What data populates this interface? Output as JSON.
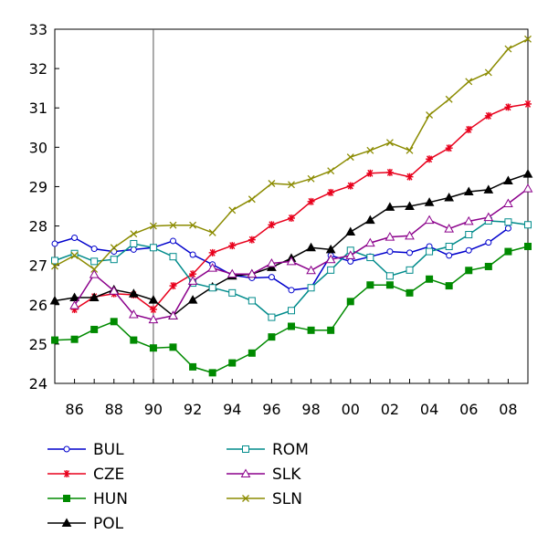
{
  "chart_data": {
    "type": "line",
    "title": "",
    "xlabel": "",
    "ylabel": "",
    "xlim": [
      1985,
      2009
    ],
    "ylim": [
      24,
      33
    ],
    "y_ticks": [
      24,
      25,
      26,
      27,
      28,
      29,
      30,
      31,
      32,
      33
    ],
    "x_ticks": [
      1986,
      1988,
      1990,
      1992,
      1994,
      1996,
      1998,
      2000,
      2002,
      2004,
      2006,
      2008
    ],
    "x_tick_labels": [
      "86",
      "88",
      "90",
      "92",
      "94",
      "96",
      "98",
      "00",
      "02",
      "04",
      "06",
      "08"
    ],
    "reference_line_x": 1990,
    "grid": false,
    "legend_position": "bottom",
    "series": [
      {
        "name": "BUL",
        "color": "#0000cc",
        "marker": "circle",
        "points": [
          [
            1985,
            27.55
          ],
          [
            1986,
            27.7
          ],
          [
            1987,
            27.42
          ],
          [
            1988,
            27.35
          ],
          [
            1989,
            27.4
          ],
          [
            1990,
            27.45
          ],
          [
            1991,
            27.62
          ],
          [
            1992,
            27.27
          ],
          [
            1993,
            27.02
          ],
          [
            1994,
            26.75
          ],
          [
            1995,
            26.68
          ],
          [
            1996,
            26.7
          ],
          [
            1997,
            26.37
          ],
          [
            1998,
            26.43
          ],
          [
            1999,
            27.25
          ],
          [
            2000,
            27.1
          ],
          [
            2001,
            27.22
          ],
          [
            2002,
            27.35
          ],
          [
            2003,
            27.32
          ],
          [
            2004,
            27.48
          ],
          [
            2005,
            27.25
          ],
          [
            2006,
            27.38
          ],
          [
            2007,
            27.58
          ],
          [
            2008,
            27.94
          ]
        ]
      },
      {
        "name": "CZE",
        "color": "#e8001c",
        "marker": "asterisk",
        "points": [
          [
            1986,
            25.88
          ],
          [
            1987,
            26.2
          ],
          [
            1988,
            26.28
          ],
          [
            1989,
            26.25
          ],
          [
            1990,
            25.88
          ],
          [
            1991,
            26.48
          ],
          [
            1992,
            26.78
          ],
          [
            1993,
            27.32
          ],
          [
            1994,
            27.5
          ],
          [
            1995,
            27.65
          ],
          [
            1996,
            28.03
          ],
          [
            1997,
            28.2
          ],
          [
            1998,
            28.62
          ],
          [
            1999,
            28.85
          ],
          [
            2000,
            29.02
          ],
          [
            2001,
            29.34
          ],
          [
            2002,
            29.36
          ],
          [
            2003,
            29.25
          ],
          [
            2004,
            29.7
          ],
          [
            2005,
            29.98
          ],
          [
            2006,
            30.45
          ],
          [
            2007,
            30.8
          ],
          [
            2008,
            31.02
          ],
          [
            2009,
            31.1
          ]
        ]
      },
      {
        "name": "HUN",
        "color": "#008a00",
        "marker": "filled-square",
        "points": [
          [
            1985,
            25.1
          ],
          [
            1986,
            25.12
          ],
          [
            1987,
            25.37
          ],
          [
            1988,
            25.57
          ],
          [
            1989,
            25.1
          ],
          [
            1990,
            24.9
          ],
          [
            1991,
            24.92
          ],
          [
            1992,
            24.42
          ],
          [
            1993,
            24.27
          ],
          [
            1994,
            24.52
          ],
          [
            1995,
            24.77
          ],
          [
            1996,
            25.18
          ],
          [
            1997,
            25.45
          ],
          [
            1998,
            25.35
          ],
          [
            1999,
            25.35
          ],
          [
            2000,
            26.08
          ],
          [
            2001,
            26.5
          ],
          [
            2002,
            26.5
          ],
          [
            2003,
            26.3
          ],
          [
            2004,
            26.65
          ],
          [
            2005,
            26.48
          ],
          [
            2006,
            26.87
          ],
          [
            2007,
            26.97
          ],
          [
            2008,
            27.35
          ],
          [
            2009,
            27.48
          ]
        ]
      },
      {
        "name": "POL",
        "color": "#000000",
        "marker": "filled-triangle",
        "points": [
          [
            1985,
            26.1
          ],
          [
            1986,
            26.18
          ],
          [
            1987,
            26.18
          ],
          [
            1988,
            26.38
          ],
          [
            1989,
            26.28
          ],
          [
            1990,
            26.12
          ],
          [
            1991,
            25.72
          ],
          [
            1992,
            26.12
          ],
          [
            1993,
            26.45
          ],
          [
            1994,
            26.73
          ],
          [
            1995,
            26.78
          ],
          [
            1996,
            26.95
          ],
          [
            1997,
            27.18
          ],
          [
            1998,
            27.45
          ],
          [
            1999,
            27.4
          ],
          [
            2000,
            27.85
          ],
          [
            2001,
            28.15
          ],
          [
            2002,
            28.48
          ],
          [
            2003,
            28.5
          ],
          [
            2004,
            28.6
          ],
          [
            2005,
            28.72
          ],
          [
            2006,
            28.87
          ],
          [
            2007,
            28.92
          ],
          [
            2008,
            29.15
          ],
          [
            2009,
            29.32
          ]
        ]
      },
      {
        "name": "ROM",
        "color": "#008b8b",
        "marker": "open-square",
        "points": [
          [
            1985,
            27.12
          ],
          [
            1986,
            27.3
          ],
          [
            1987,
            27.1
          ],
          [
            1988,
            27.15
          ],
          [
            1989,
            27.55
          ],
          [
            1990,
            27.45
          ],
          [
            1991,
            27.22
          ],
          [
            1992,
            26.55
          ],
          [
            1993,
            26.43
          ],
          [
            1994,
            26.3
          ],
          [
            1995,
            26.1
          ],
          [
            1996,
            25.68
          ],
          [
            1997,
            25.85
          ],
          [
            1998,
            26.43
          ],
          [
            1999,
            26.88
          ],
          [
            2000,
            27.38
          ],
          [
            2001,
            27.2
          ],
          [
            2002,
            26.73
          ],
          [
            2003,
            26.88
          ],
          [
            2004,
            27.35
          ],
          [
            2005,
            27.48
          ],
          [
            2006,
            27.78
          ],
          [
            2007,
            28.13
          ],
          [
            2008,
            28.1
          ],
          [
            2009,
            28.03
          ]
        ]
      },
      {
        "name": "SLK",
        "color": "#8b008b",
        "marker": "open-triangle",
        "points": [
          [
            1986,
            25.98
          ],
          [
            1987,
            26.77
          ],
          [
            1988,
            26.35
          ],
          [
            1989,
            25.75
          ],
          [
            1990,
            25.62
          ],
          [
            1991,
            25.72
          ],
          [
            1992,
            26.6
          ],
          [
            1993,
            26.93
          ],
          [
            1994,
            26.78
          ],
          [
            1995,
            26.78
          ],
          [
            1996,
            27.05
          ],
          [
            1997,
            27.1
          ],
          [
            1998,
            26.87
          ],
          [
            1999,
            27.15
          ],
          [
            2000,
            27.25
          ],
          [
            2001,
            27.57
          ],
          [
            2002,
            27.72
          ],
          [
            2003,
            27.75
          ],
          [
            2004,
            28.15
          ],
          [
            2005,
            27.93
          ],
          [
            2006,
            28.12
          ],
          [
            2007,
            28.22
          ],
          [
            2008,
            28.57
          ],
          [
            2009,
            28.95
          ]
        ]
      },
      {
        "name": "SLN",
        "color": "#8b8b00",
        "marker": "cross",
        "points": [
          [
            1985,
            26.98
          ],
          [
            1986,
            27.25
          ],
          [
            1987,
            26.9
          ],
          [
            1988,
            27.45
          ],
          [
            1989,
            27.8
          ],
          [
            1990,
            28.0
          ],
          [
            1991,
            28.02
          ],
          [
            1992,
            28.02
          ],
          [
            1993,
            27.83
          ],
          [
            1994,
            28.4
          ],
          [
            1995,
            28.68
          ],
          [
            1996,
            29.08
          ],
          [
            1997,
            29.05
          ],
          [
            1998,
            29.2
          ],
          [
            1999,
            29.4
          ],
          [
            2000,
            29.75
          ],
          [
            2001,
            29.92
          ],
          [
            2002,
            30.12
          ],
          [
            2003,
            29.92
          ],
          [
            2004,
            30.82
          ],
          [
            2005,
            31.22
          ],
          [
            2006,
            31.67
          ],
          [
            2007,
            31.9
          ],
          [
            2008,
            32.5
          ],
          [
            2009,
            32.75
          ]
        ]
      }
    ]
  }
}
